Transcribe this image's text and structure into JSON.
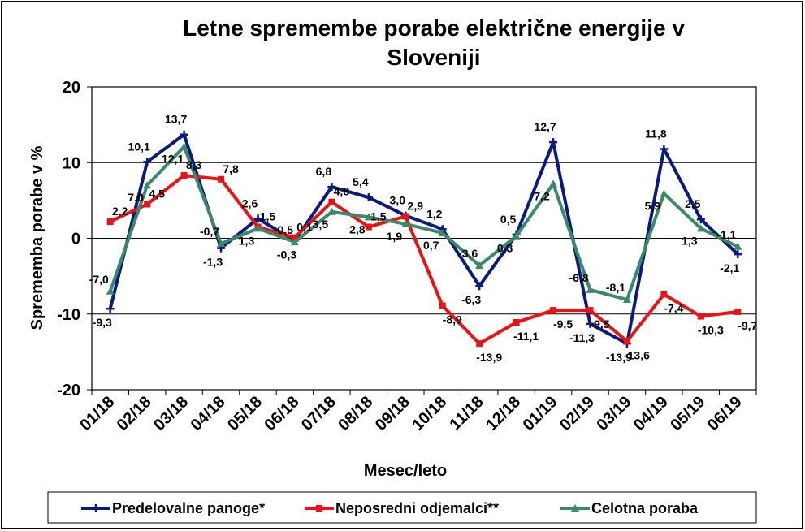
{
  "chart_data": {
    "type": "line",
    "title_lines": [
      "Letne spremembe porabe električne energije v",
      "Sloveniji"
    ],
    "xlabel": "Mesec/leto",
    "ylabel": "Sprememba porabe v %",
    "ylim": [
      -20,
      20
    ],
    "yticks": [
      "-20",
      "-10",
      "0",
      "10",
      "20"
    ],
    "grid": "horizontal",
    "legend_position": "bottom",
    "categories": [
      "01/18",
      "02/18",
      "03/18",
      "04/18",
      "05/18",
      "06/18",
      "07/18",
      "08/18",
      "09/18",
      "10/18",
      "11/18",
      "12/18",
      "01/19",
      "02/19",
      "03/19",
      "04/19",
      "05/19",
      "06/19"
    ],
    "series": [
      {
        "name": "Predelovalne panoge*",
        "color": "#0a1a80",
        "marker": "plus",
        "values": [
          -9.3,
          10.1,
          13.7,
          -1.3,
          2.6,
          -0.3,
          6.8,
          5.4,
          3.0,
          1.2,
          -6.3,
          0.5,
          12.7,
          -11.3,
          -13.9,
          11.8,
          2.5,
          -2.1
        ],
        "labels": [
          "-9,3",
          "10,1",
          "13,7",
          "-1,3",
          "2,6",
          "-0,3",
          "6,8",
          "5,4",
          "3,0",
          "1,2",
          "-6,3",
          "0,5",
          "12,7",
          "-11,3",
          "-13,9",
          "11,8",
          "2,5",
          "-2,1"
        ]
      },
      {
        "name": "Neposredni odjemalci**",
        "color": "#ee1111",
        "marker": "square",
        "values": [
          2.2,
          4.5,
          8.3,
          7.8,
          1.5,
          0.1,
          4.8,
          1.5,
          2.9,
          -8.9,
          -13.9,
          -11.1,
          -9.5,
          -9.5,
          -13.6,
          -7.4,
          -10.3,
          -9.7
        ],
        "labels": [
          "2,2",
          "4,5",
          "8,3",
          "7,8",
          "1,5",
          "0,1",
          "4,8",
          "1,5",
          "2,9",
          "-8,9",
          "-13,9",
          "-11,1",
          "-9,5",
          "-9,5",
          "-13,6",
          "-7,4",
          "-10,3",
          "-9,7"
        ]
      },
      {
        "name": "Celotna poraba",
        "color": "#3a8a6a",
        "marker": "triangle",
        "values": [
          -7.0,
          7.0,
          12.1,
          -0.7,
          1.3,
          -0.5,
          3.5,
          2.8,
          1.9,
          0.7,
          -3.6,
          0.3,
          7.2,
          -6.8,
          -8.1,
          5.9,
          1.3,
          -1.1
        ],
        "labels": [
          "-7,0",
          "7,0",
          "12,1",
          "-0,7",
          "1,3",
          "-0,5",
          "3,5",
          "2,8",
          "1,9",
          "0,7",
          "-3,6",
          "0,3",
          "7,2",
          "-6,8",
          "-8,1",
          "5,9",
          "1,3",
          "-1,1"
        ]
      }
    ]
  }
}
